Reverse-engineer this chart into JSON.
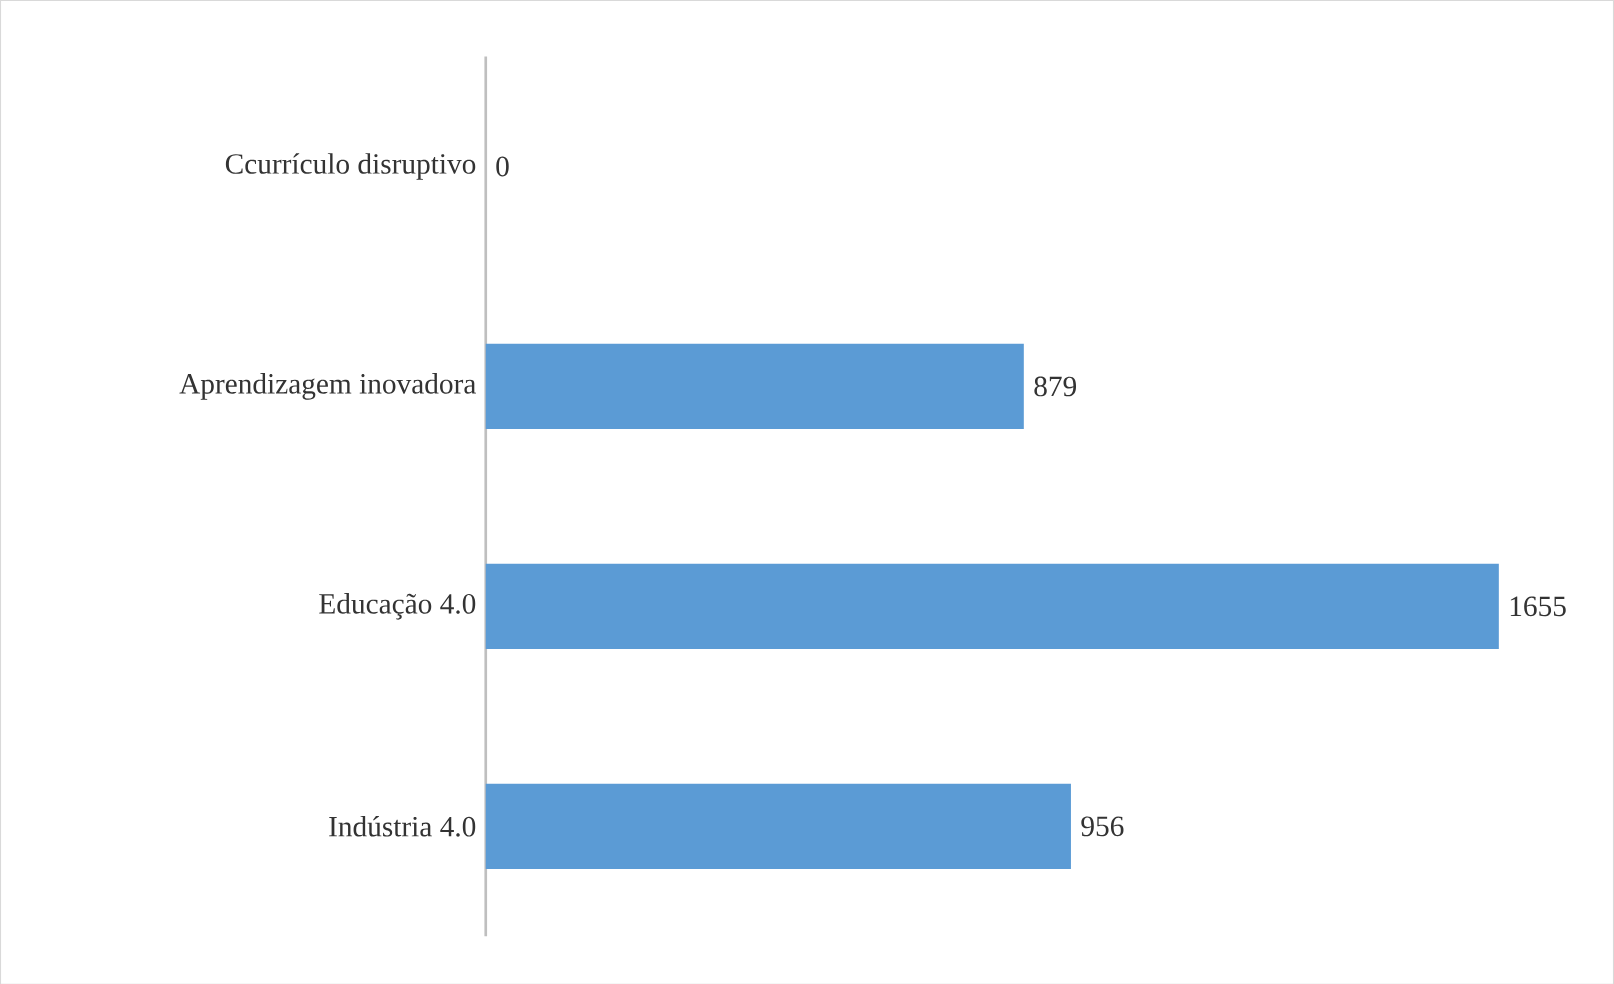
{
  "chart_data": {
    "type": "bar",
    "orientation": "horizontal",
    "categories": [
      "Ccurrículo disruptivo",
      "Aprendizagem inovadora",
      "Educação 4.0",
      "Indústria 4.0"
    ],
    "values": [
      0,
      879,
      1655,
      956
    ],
    "color": "#5b9bd5",
    "data_labels": true
  }
}
